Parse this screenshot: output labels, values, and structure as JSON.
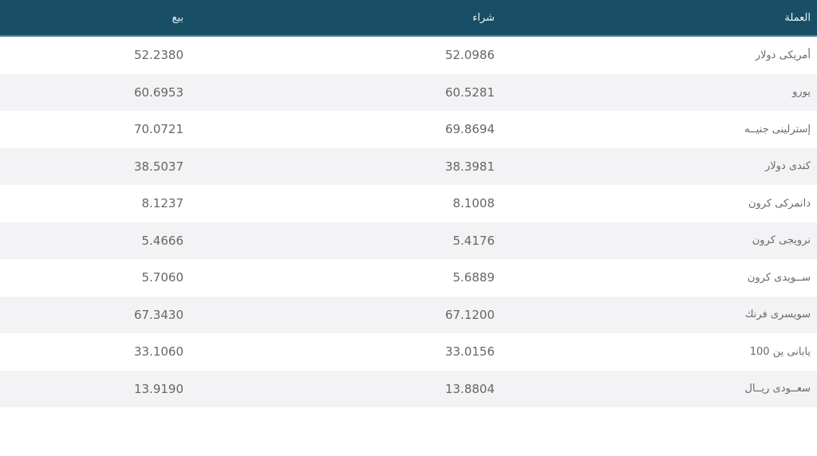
{
  "table": {
    "name": "currency-exchange-rates",
    "columns": [
      {
        "key": "sell",
        "label": "بيع"
      },
      {
        "key": "buy",
        "label": "شراء"
      },
      {
        "key": "currency",
        "label": "العملة"
      }
    ],
    "rows": [
      {
        "currency": "دولار‎ أمريكى",
        "buy": "52.0986",
        "sell": "52.2380"
      },
      {
        "currency": "يورو",
        "buy": "60.5281",
        "sell": "60.6953"
      },
      {
        "currency": "جنيــه‎ إسترلينى",
        "buy": "69.8694",
        "sell": "70.0721"
      },
      {
        "currency": "دولار‎ كندى",
        "buy": "38.3981",
        "sell": "38.5037"
      },
      {
        "currency": "كرون‎ دانمركى",
        "buy": "8.1008",
        "sell": "8.1237"
      },
      {
        "currency": "كرون‎ نرويجى",
        "buy": "5.4176",
        "sell": "5.4666"
      },
      {
        "currency": "كرون‎ ســويدى",
        "buy": "5.6889",
        "sell": "5.7060"
      },
      {
        "currency": "فرنك‎ سويسرى",
        "buy": "67.1200",
        "sell": "67.3430"
      },
      {
        "currency": "100 ين‎ يابانى",
        "buy": "33.0156",
        "sell": "33.1060"
      },
      {
        "currency": "ريــال‎ سعــودى",
        "buy": "13.8804",
        "sell": "13.9190"
      }
    ]
  },
  "colors": {
    "header_bg": "#184f66",
    "header_border": "#4e7e99",
    "header_text": "#ecf2f5",
    "row_alt_bg": "#f3f3f5",
    "row_bg": "#ffffff",
    "cell_text": "#666666"
  }
}
